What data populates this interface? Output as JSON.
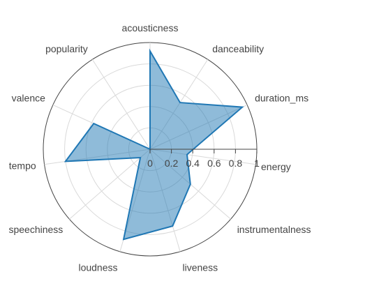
{
  "chart_data": {
    "type": "radar",
    "categories": [
      "acousticness",
      "danceability",
      "duration_ms",
      "energy",
      "instrumentalness",
      "liveness",
      "loudness",
      "speechiness",
      "tempo",
      "valence",
      "popularity"
    ],
    "series": [
      {
        "values": [
          0.92,
          0.52,
          0.95,
          0.35,
          0.5,
          0.75,
          0.88,
          0.12,
          0.8,
          0.58,
          0.0
        ],
        "line_color": "#1f77b4",
        "fill_color": "#1f77b4",
        "fill_opacity": 0.5
      }
    ],
    "radial_range": [
      0,
      1
    ],
    "radial_ticks": [
      "0",
      "0.2",
      "0.4",
      "0.6",
      "0.8",
      "1"
    ],
    "radial_tick_values": [
      0,
      0.2,
      0.4,
      0.6,
      0.8,
      1.0
    ],
    "grid": true,
    "direction": "clockwise",
    "start_category_position": "top"
  }
}
